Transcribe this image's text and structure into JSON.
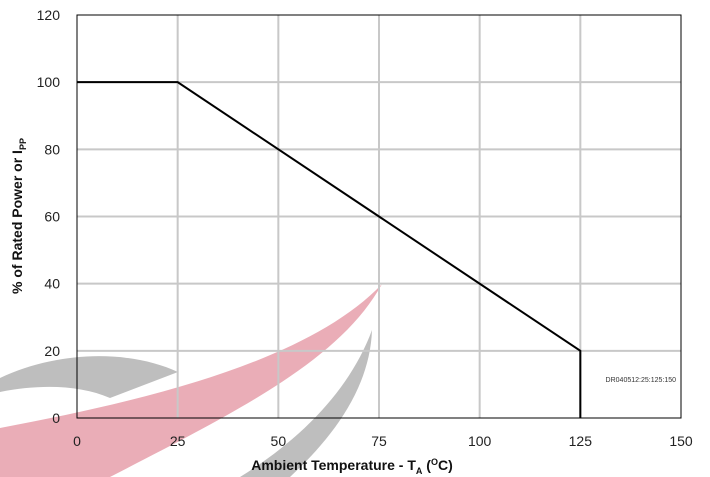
{
  "chart_data": {
    "type": "line",
    "title": "",
    "xlabel": "Ambient Temperature - T",
    "xlabel_subscript": "A",
    "xlabel_open": " (",
    "xlabel_sup": "O",
    "xlabel_close": "C)",
    "ylabel": "% of Rated Power or I",
    "ylabel_subscript": "PP",
    "xlim": [
      0,
      150
    ],
    "ylim": [
      0,
      120
    ],
    "xticks": [
      0,
      25,
      50,
      75,
      100,
      125,
      150
    ],
    "yticks": [
      0,
      20,
      40,
      60,
      80,
      100,
      120
    ],
    "grid": true,
    "series": [
      {
        "x": [
          0,
          25,
          125,
          125
        ],
        "y": [
          100,
          100,
          20,
          0
        ]
      }
    ],
    "annotation": "DR040512:25:125:150",
    "colors": {
      "line": "#000000",
      "grid": "#c8c8c8",
      "watermark_gray": "#b8b8b8",
      "watermark_red": "#e8a5b0"
    }
  }
}
